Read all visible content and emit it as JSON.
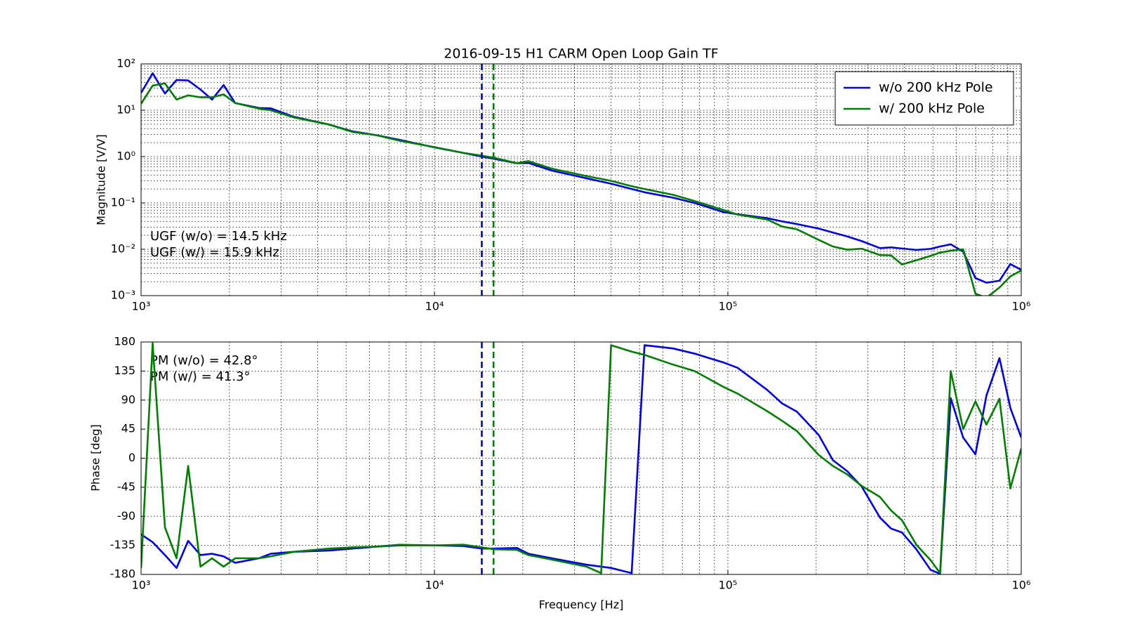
{
  "chart_data": [
    {
      "type": "line",
      "title": "2016-09-15 H1 CARM Open Loop Gain TF",
      "ylabel": "Magnitude [V/V]",
      "annotations": [
        "UGF (w/o) = 14.5 kHz",
        "UGF (w/) = 15.9 kHz"
      ],
      "xscale": "log",
      "yscale": "log",
      "grid": true,
      "legend": "upper right",
      "xlim": [
        1000,
        1000000
      ],
      "xticks": [
        {
          "value": 1000,
          "label": "10³"
        },
        {
          "value": 10000,
          "label": "10⁴"
        },
        {
          "value": 100000,
          "label": "10⁵"
        },
        {
          "value": 1000000,
          "label": "10⁶"
        }
      ],
      "ylim": [
        0.001,
        100
      ],
      "yticks": [
        {
          "value": 0.001,
          "label": "10⁻³"
        },
        {
          "value": 0.01,
          "label": "10⁻²"
        },
        {
          "value": 0.1,
          "label": "10⁻¹"
        },
        {
          "value": 1,
          "label": "10⁰"
        },
        {
          "value": 10,
          "label": "10¹"
        },
        {
          "value": 100,
          "label": "10²"
        }
      ],
      "vlines": [
        {
          "x": 14500,
          "color": "#0000ee"
        },
        {
          "x": 15900,
          "color": "#007f00"
        }
      ],
      "x": [
        1000,
        1095,
        1206,
        1321,
        1447,
        1594,
        1745,
        1911,
        2093,
        2524,
        2767,
        3320,
        4380,
        5260,
        6340,
        7600,
        10000,
        12550,
        14500,
        15900,
        19100,
        20900,
        25100,
        33000,
        37000,
        40000,
        47000,
        52000,
        65000,
        77000,
        97000,
        108000,
        136000,
        153000,
        172000,
        204000,
        228000,
        255000,
        286000,
        330000,
        360000,
        392000,
        439000,
        491000,
        529000,
        575000,
        634000,
        698000,
        761000,
        843000,
        918000,
        1000000
      ],
      "series": [
        {
          "name": "w/o 200 kHz Pole",
          "color": "#0000ee",
          "values": [
            23.7,
            62.7,
            23,
            45,
            44,
            28,
            17,
            35,
            14.3,
            11.2,
            11,
            7.2,
            4.9,
            3.5,
            2.9,
            2.3,
            1.58,
            1.2,
            1.0,
            0.9,
            0.72,
            0.73,
            0.5,
            0.34,
            0.29,
            0.26,
            0.2,
            0.17,
            0.13,
            0.1,
            0.063,
            0.057,
            0.047,
            0.04,
            0.035,
            0.028,
            0.023,
            0.019,
            0.015,
            0.0106,
            0.011,
            0.0104,
            0.0097,
            0.0102,
            0.0115,
            0.0128,
            0.0089,
            0.0024,
            0.0019,
            0.0021,
            0.0048,
            0.0036
          ]
        },
        {
          "name": "w/ 200 kHz Pole",
          "color": "#007f00",
          "values": [
            13.8,
            34,
            38,
            17,
            21,
            19,
            19,
            22,
            14.3,
            10.8,
            10,
            7,
            4.9,
            3.4,
            2.9,
            2.2,
            1.6,
            1.2,
            1.05,
            0.95,
            0.72,
            0.8,
            0.55,
            0.38,
            0.33,
            0.3,
            0.23,
            0.2,
            0.15,
            0.11,
            0.07,
            0.056,
            0.044,
            0.031,
            0.027,
            0.016,
            0.0115,
            0.0098,
            0.0103,
            0.0075,
            0.0074,
            0.0047,
            0.0058,
            0.0072,
            0.0085,
            0.0093,
            0.01,
            0.0011,
            0.0009,
            0.0015,
            0.0026,
            0.0035
          ]
        }
      ]
    },
    {
      "type": "line",
      "xlabel": "Frequency [Hz]",
      "ylabel": "Phase [deg]",
      "annotations": [
        "PM (w/o) = 42.8°",
        "PM (w/) = 41.3°"
      ],
      "xscale": "log",
      "yscale": "linear",
      "grid": true,
      "xlim": [
        1000,
        1000000
      ],
      "xticks": [
        {
          "value": 1000,
          "label": "10³"
        },
        {
          "value": 10000,
          "label": "10⁴"
        },
        {
          "value": 100000,
          "label": "10⁵"
        },
        {
          "value": 1000000,
          "label": "10⁶"
        }
      ],
      "ylim": [
        -180,
        180
      ],
      "yticks": [
        -180,
        -135,
        -90,
        -45,
        0,
        45,
        90,
        135,
        180
      ],
      "vlines": [
        {
          "x": 14500,
          "color": "#0000ee"
        },
        {
          "x": 15900,
          "color": "#007f00"
        }
      ],
      "x": [
        1000,
        1095,
        1206,
        1321,
        1447,
        1594,
        1745,
        1911,
        2093,
        2524,
        2767,
        3320,
        4380,
        5260,
        6340,
        7600,
        10000,
        12550,
        14500,
        15900,
        19100,
        20900,
        25100,
        33000,
        37000,
        40000,
        47000,
        52000,
        65000,
        77000,
        97000,
        108000,
        136000,
        153000,
        172000,
        204000,
        228000,
        255000,
        286000,
        330000,
        360000,
        392000,
        439000,
        491000,
        529000,
        575000,
        634000,
        698000,
        761000,
        843000,
        918000,
        1000000
      ],
      "series": [
        {
          "color": "#0000ee",
          "values": [
            -118,
            -130,
            -150,
            -170,
            -128,
            -150,
            -148,
            -152,
            -162,
            -155,
            -148,
            -145,
            -143,
            -140,
            -137,
            -135,
            -135,
            -136,
            -140,
            -140,
            -139,
            -148,
            -155,
            -165,
            -168,
            -170,
            -178,
            175,
            170,
            162,
            148,
            140,
            106,
            85,
            72,
            36,
            -3,
            -20,
            -44,
            -92,
            -109,
            -115,
            -141,
            -173,
            -179,
            93,
            32,
            6,
            97,
            155,
            78,
            32
          ]
        },
        {
          "color": "#007f00",
          "values": [
            -170,
            178,
            -107,
            -155,
            -12,
            -168,
            -155,
            -168,
            -155,
            -155,
            -152,
            -145,
            -140,
            -138,
            -137,
            -134,
            -135,
            -134,
            -138,
            -141,
            -142,
            -150,
            -157,
            -168,
            -178,
            175,
            165,
            160,
            145,
            135,
            110,
            100,
            73,
            58,
            42,
            5,
            -12,
            -25,
            -43,
            -60,
            -81,
            -96,
            -134,
            -158,
            -178,
            135,
            45,
            88,
            52,
            92,
            -47,
            15
          ]
        }
      ]
    }
  ]
}
